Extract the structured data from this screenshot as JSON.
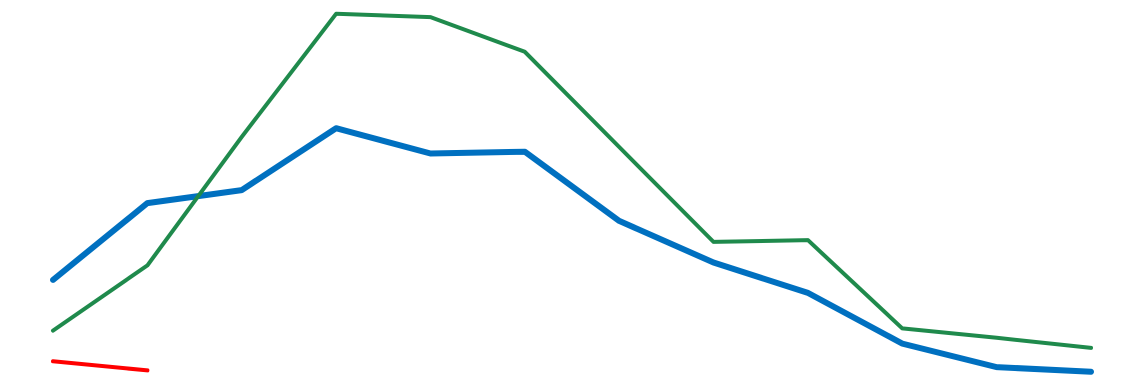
{
  "chart_data": {
    "type": "line",
    "title": "",
    "xlabel": "",
    "ylabel": "",
    "grid": false,
    "legend": "none",
    "x": [
      1,
      2,
      3,
      4,
      5,
      6,
      7,
      8,
      9,
      10,
      11,
      12
    ],
    "ylim": [
      0,
      100
    ],
    "series": [
      {
        "color": "#0070c0",
        "stroke": "thick",
        "values": [
          26.0,
          47.2,
          50.8,
          67.9,
          60.9,
          61.4,
          42.3,
          30.8,
          22.4,
          8.4,
          1.9,
          0.6
        ]
      },
      {
        "color": "#1f8a4c",
        "stroke": "normal",
        "values": [
          12.0,
          30.0,
          65.5,
          99.5,
          98.6,
          89.0,
          62.7,
          36.5,
          37.0,
          12.6,
          10.0,
          7.2
        ]
      },
      {
        "color": "#ff0000",
        "stroke": "normal",
        "values": [
          3.5,
          1.0,
          null,
          null,
          null,
          null,
          null,
          null,
          null,
          null,
          null,
          null
        ]
      }
    ]
  }
}
